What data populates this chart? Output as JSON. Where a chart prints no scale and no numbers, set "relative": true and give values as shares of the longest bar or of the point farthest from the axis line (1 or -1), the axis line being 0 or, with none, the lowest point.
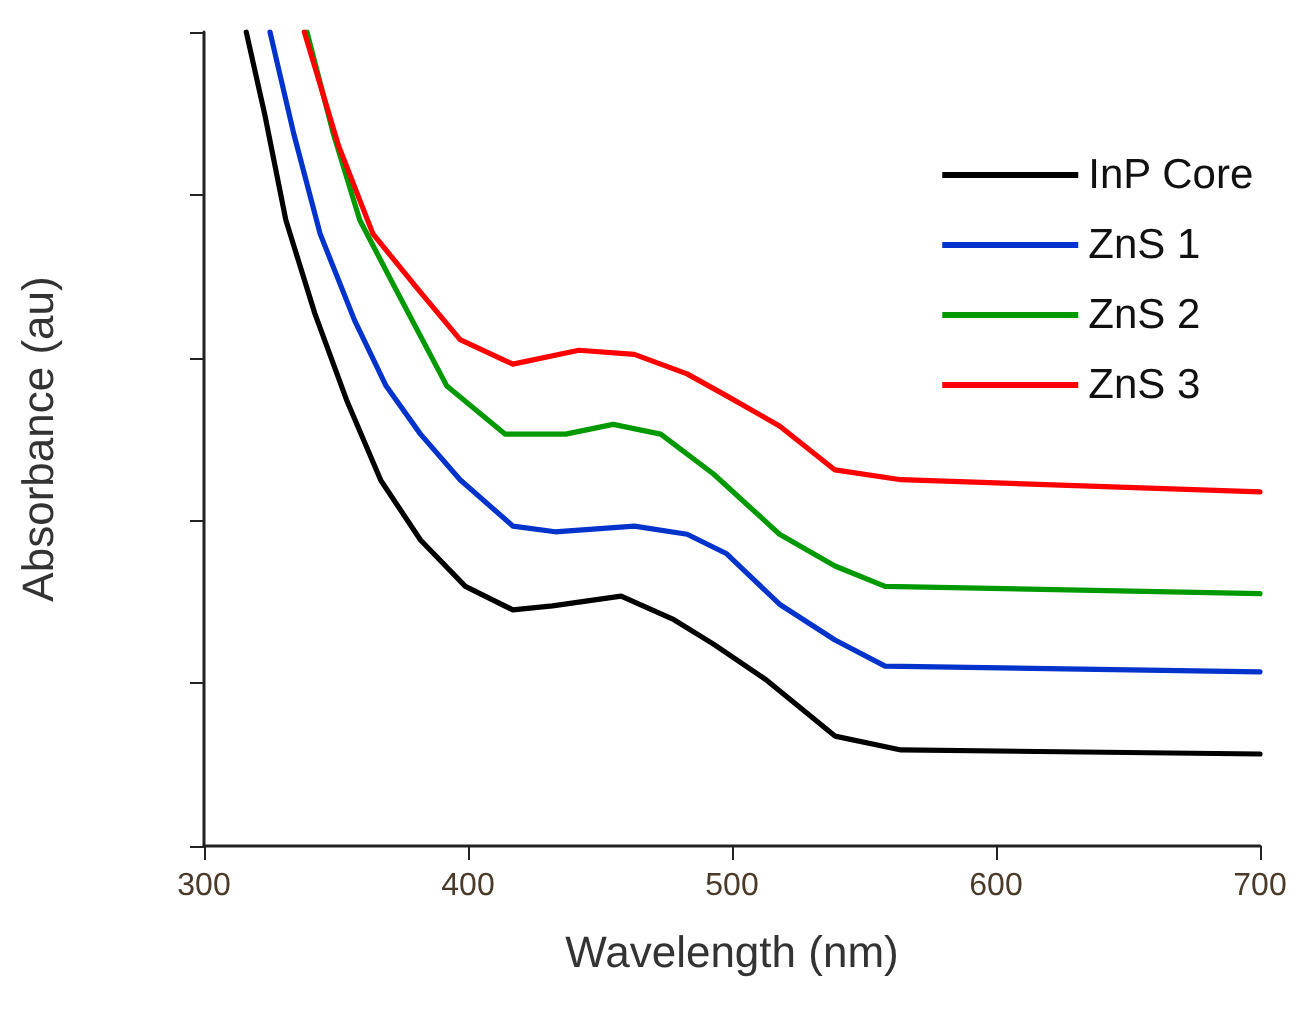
{
  "chart_data": {
    "type": "line",
    "xlabel": "Wavelength (nm)",
    "ylabel": "Absorbance (au)",
    "relative": true,
    "xlim": [
      300,
      700
    ],
    "xticks": [
      300,
      400,
      500,
      600,
      700
    ],
    "grid": false,
    "legend": "top right",
    "marker": "none",
    "line_style": "solid",
    "series": [
      {
        "name": "InP Core",
        "color": "#000000",
        "x": [
          316,
          323,
          331,
          342,
          354,
          367,
          382,
          399,
          417,
          432,
          458,
          478,
          493,
          513,
          539,
          564,
          700
        ],
        "values": [
          1.0,
          0.899,
          0.769,
          0.654,
          0.548,
          0.449,
          0.376,
          0.319,
          0.29,
          0.295,
          0.307,
          0.278,
          0.248,
          0.204,
          0.135,
          0.118,
          0.113
        ]
      },
      {
        "name": "ZnS 1",
        "color": "#0033cc",
        "x": [
          325,
          334,
          344,
          357,
          369,
          382,
          397,
          417,
          433,
          463,
          483,
          498,
          518,
          539,
          558,
          700
        ],
        "values": [
          1.0,
          0.875,
          0.752,
          0.646,
          0.565,
          0.506,
          0.45,
          0.393,
          0.386,
          0.393,
          0.383,
          0.359,
          0.297,
          0.253,
          0.221,
          0.214
        ]
      },
      {
        "name": "ZnS 2",
        "color": "#009900",
        "x": [
          339,
          349,
          359,
          372,
          392,
          414,
          437,
          455,
          473,
          493,
          518,
          539,
          558,
          700
        ],
        "values": [
          1.0,
          0.875,
          0.769,
          0.688,
          0.565,
          0.506,
          0.506,
          0.518,
          0.506,
          0.457,
          0.383,
          0.344,
          0.319,
          0.31
        ]
      },
      {
        "name": "ZnS 3",
        "color": "#ff0000",
        "x": [
          338,
          351,
          364,
          380,
          397,
          417,
          442,
          463,
          483,
          498,
          518,
          539,
          564,
          700
        ],
        "values": [
          1.0,
          0.86,
          0.752,
          0.688,
          0.622,
          0.592,
          0.609,
          0.604,
          0.58,
          0.553,
          0.516,
          0.462,
          0.45,
          0.435
        ]
      }
    ]
  }
}
